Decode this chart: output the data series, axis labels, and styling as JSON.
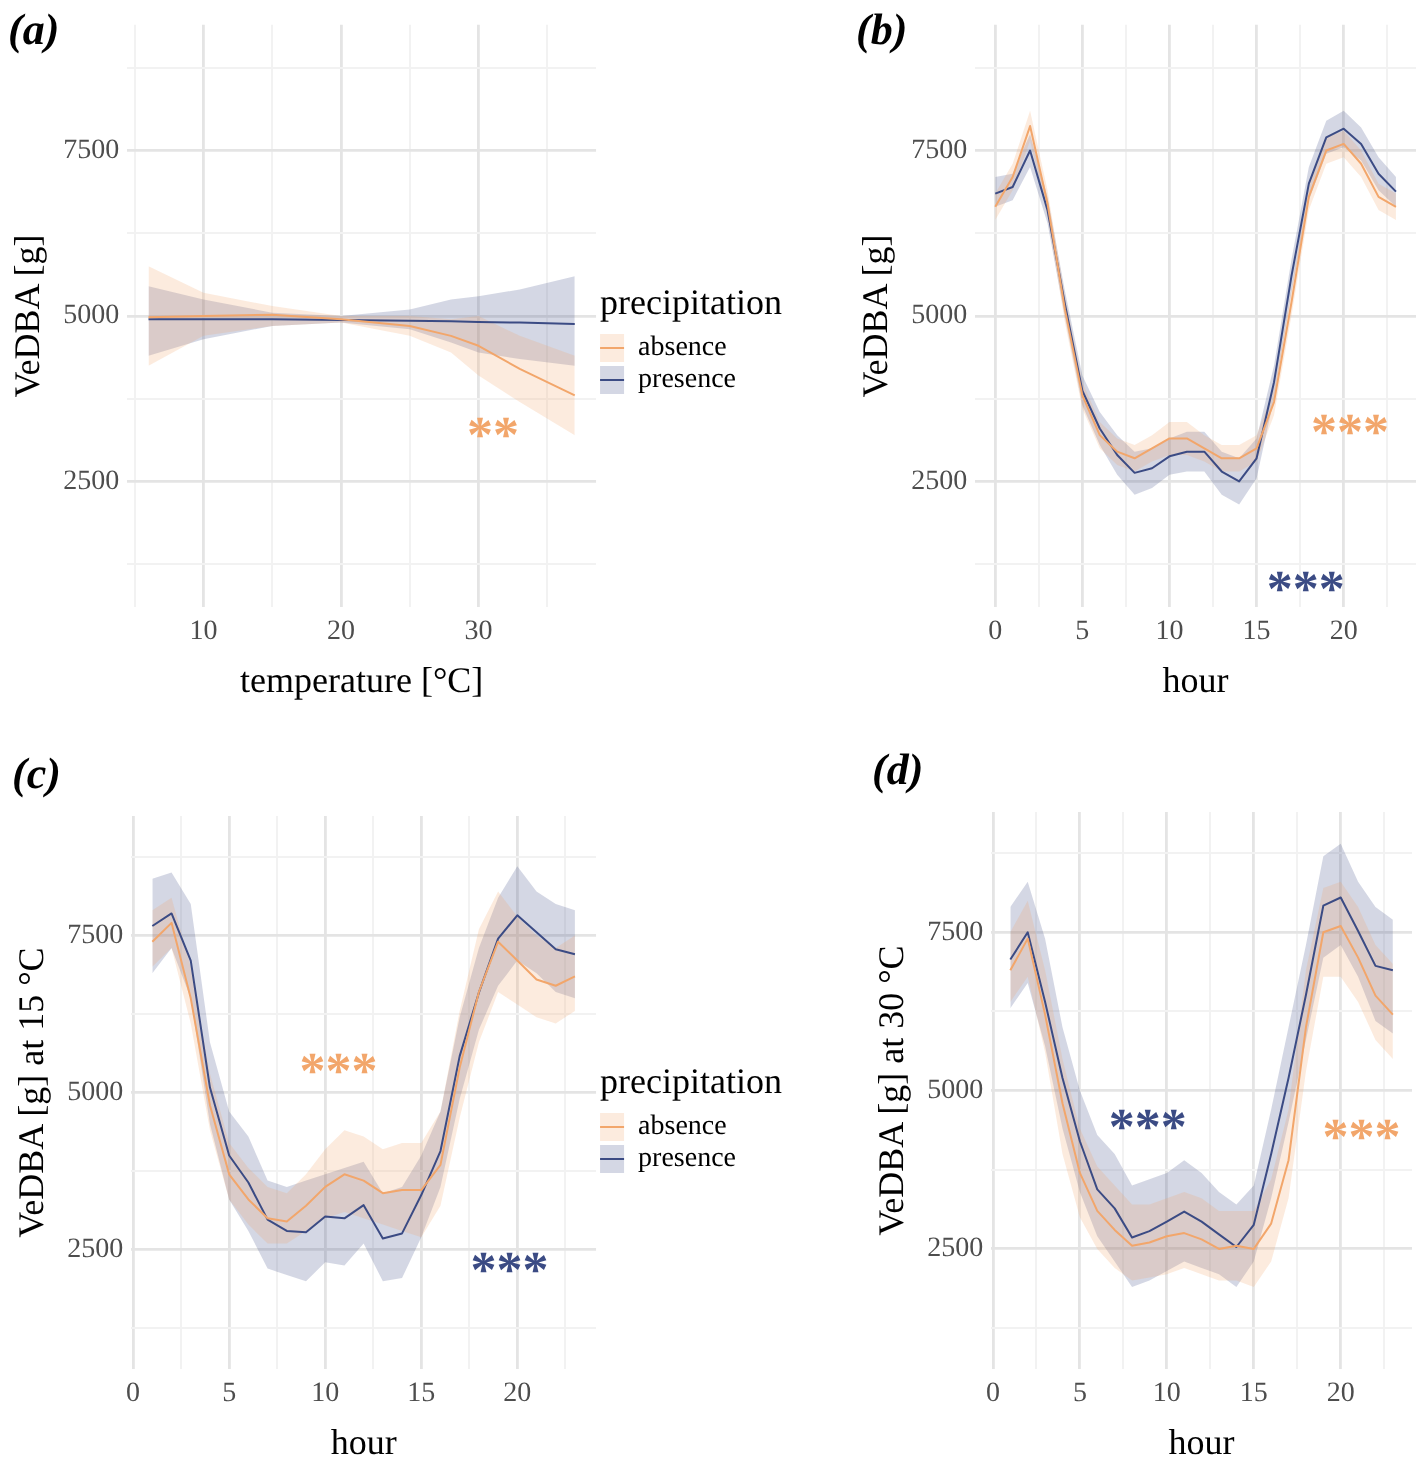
{
  "chart_data": [
    {
      "type": "line",
      "title": "(a)",
      "xlabel": "temperature [°C]",
      "ylabel": "VeDBA [g]",
      "legend_title": "precipitation",
      "legend": "right",
      "grid": true,
      "xlim": [
        4.45,
        38.55
      ],
      "xticks": [
        {
          "value": 5,
          "label": null
        },
        10,
        {
          "value": 15,
          "label": null
        },
        20,
        {
          "value": 25,
          "label": null
        },
        30,
        {
          "value": 35,
          "label": null
        }
      ],
      "ylim": [
        600,
        9400
      ],
      "yticks": [
        {
          "value": 1250,
          "label": null
        },
        2500,
        {
          "value": 3750,
          "label": null
        },
        5000,
        {
          "value": 6250,
          "label": null
        },
        7500,
        {
          "value": 8750,
          "label": null
        }
      ],
      "series": [
        {
          "name": "absence",
          "color": "#f2a66b",
          "x": [
            6,
            10,
            15,
            20,
            25,
            28,
            30,
            33,
            37
          ],
          "values": [
            4980,
            5000,
            5020,
            4950,
            4850,
            4700,
            4550,
            4200,
            3800
          ],
          "lower": [
            4250,
            4700,
            4850,
            4900,
            4700,
            4450,
            4100,
            3700,
            3200
          ],
          "upper": [
            5750,
            5350,
            5150,
            5000,
            5000,
            4950,
            5000,
            4700,
            4400
          ]
        },
        {
          "name": "presence",
          "color": "#3b4b84",
          "x": [
            6,
            10,
            15,
            20,
            25,
            28,
            30,
            33,
            37
          ],
          "values": [
            4950,
            4950,
            4950,
            4940,
            4930,
            4920,
            4910,
            4900,
            4880
          ],
          "lower": [
            4400,
            4650,
            4850,
            4900,
            4800,
            4600,
            4450,
            4350,
            4250
          ],
          "upper": [
            5450,
            5250,
            5050,
            5000,
            5100,
            5250,
            5300,
            5400,
            5600
          ]
        }
      ],
      "annotations": [
        "**"
      ]
    },
    {
      "type": "line",
      "title": "(b)",
      "xlabel": "hour",
      "ylabel": "VeDBA [g]",
      "grid": true,
      "xlim": [
        -1.15,
        24.15
      ],
      "xticks": [
        0,
        {
          "value": 2.5,
          "label": null
        },
        5,
        {
          "value": 7.5,
          "label": null
        },
        10,
        {
          "value": 12.5,
          "label": null
        },
        15,
        {
          "value": 17.5,
          "label": null
        },
        20,
        {
          "value": 22.5,
          "label": null
        }
      ],
      "ylim": [
        600,
        9400
      ],
      "yticks": [
        {
          "value": 1250,
          "label": null
        },
        2500,
        {
          "value": 3750,
          "label": null
        },
        5000,
        {
          "value": 6250,
          "label": null
        },
        7500,
        {
          "value": 8750,
          "label": null
        }
      ],
      "series": [
        {
          "color": "#f2a66b",
          "x": [
            0,
            1,
            2,
            3,
            4,
            5,
            6,
            7,
            8,
            9,
            10,
            11,
            12,
            13,
            14,
            15,
            16,
            17,
            18,
            19,
            20,
            21,
            22,
            23
          ],
          "values": [
            6650,
            7100,
            7870,
            6700,
            5100,
            3800,
            3200,
            2950,
            2850,
            3000,
            3150,
            3150,
            3000,
            2850,
            2850,
            3000,
            3700,
            5200,
            6800,
            7500,
            7600,
            7300,
            6800,
            6650
          ],
          "lower": [
            6450,
            6900,
            7650,
            6500,
            4900,
            3600,
            3000,
            2750,
            2650,
            2800,
            2900,
            2900,
            2800,
            2650,
            2650,
            2800,
            3500,
            5000,
            6600,
            7300,
            7400,
            7100,
            6600,
            6450
          ],
          "upper": [
            6850,
            7300,
            8100,
            6900,
            5300,
            4000,
            3400,
            3150,
            3050,
            3200,
            3400,
            3400,
            3200,
            3050,
            3050,
            3200,
            3900,
            5400,
            7000,
            7700,
            7800,
            7500,
            7000,
            6850
          ]
        },
        {
          "color": "#3b4b84",
          "x": [
            0,
            1,
            2,
            3,
            4,
            5,
            6,
            7,
            8,
            9,
            10,
            11,
            12,
            13,
            14,
            15,
            16,
            17,
            18,
            19,
            20,
            21,
            22,
            23
          ],
          "values": [
            6850,
            6950,
            7500,
            6600,
            5180,
            3870,
            3300,
            2900,
            2630,
            2700,
            2880,
            2950,
            2950,
            2650,
            2500,
            2850,
            4000,
            5600,
            7000,
            7700,
            7830,
            7600,
            7150,
            6880
          ],
          "lower": [
            6650,
            6750,
            7250,
            6400,
            4980,
            3650,
            3050,
            2600,
            2300,
            2400,
            2600,
            2650,
            2650,
            2300,
            2150,
            2550,
            3750,
            5350,
            6750,
            7450,
            7550,
            7350,
            6900,
            6650
          ],
          "upper": [
            7100,
            7150,
            7750,
            6800,
            5380,
            4100,
            3550,
            3200,
            2950,
            3000,
            3150,
            3250,
            3250,
            2950,
            2850,
            3150,
            4250,
            5850,
            7250,
            7950,
            8100,
            7850,
            7400,
            7100
          ]
        }
      ],
      "annotations": [
        "***",
        "***"
      ]
    },
    {
      "type": "line",
      "title": "(c)",
      "xlabel": "hour",
      "ylabel": "VeDBA [g] at 15 °C",
      "legend_title": "precipitation",
      "legend": "right",
      "grid": true,
      "xlim": [
        -0.1,
        24.1
      ],
      "xticks": [
        0,
        {
          "value": 2.5,
          "label": null
        },
        5,
        {
          "value": 7.5,
          "label": null
        },
        10,
        {
          "value": 12.5,
          "label": null
        },
        15,
        {
          "value": 17.5,
          "label": null
        },
        20,
        {
          "value": 22.5,
          "label": null
        }
      ],
      "ylim": [
        600,
        9400
      ],
      "yticks": [
        {
          "value": 1250,
          "label": null
        },
        2500,
        {
          "value": 3750,
          "label": null
        },
        5000,
        {
          "value": 6250,
          "label": null
        },
        7500,
        {
          "value": 8750,
          "label": null
        }
      ],
      "series": [
        {
          "name": "absence",
          "color": "#f2a66b",
          "x": [
            1,
            2,
            3,
            4,
            5,
            6,
            7,
            8,
            9,
            10,
            11,
            12,
            13,
            14,
            15,
            16,
            17,
            18,
            19,
            20,
            21,
            22,
            23
          ],
          "values": [
            7400,
            7700,
            6500,
            4800,
            3700,
            3300,
            3000,
            2950,
            3200,
            3500,
            3700,
            3600,
            3400,
            3450,
            3450,
            3850,
            5400,
            6600,
            7400,
            7100,
            6800,
            6700,
            6850
          ],
          "lower": [
            7000,
            7300,
            6100,
            4400,
            3300,
            2900,
            2600,
            2600,
            2800,
            3000,
            3100,
            3000,
            2900,
            2800,
            2700,
            3200,
            4600,
            5800,
            6600,
            6400,
            6200,
            6100,
            6300
          ],
          "upper": [
            7900,
            8100,
            7000,
            5300,
            4200,
            3800,
            3500,
            3400,
            3700,
            4100,
            4400,
            4300,
            4100,
            4200,
            4200,
            4700,
            6300,
            7600,
            8200,
            7800,
            7500,
            7300,
            7500
          ]
        },
        {
          "name": "presence",
          "color": "#3b4b84",
          "x": [
            1,
            2,
            3,
            4,
            5,
            6,
            7,
            8,
            9,
            10,
            11,
            12,
            13,
            14,
            15,
            16,
            17,
            18,
            19,
            20,
            21,
            22,
            23
          ],
          "values": [
            7650,
            7850,
            7100,
            5080,
            4000,
            3570,
            2980,
            2800,
            2780,
            3030,
            3000,
            3210,
            2680,
            2760,
            3370,
            4070,
            5580,
            6590,
            7450,
            7820,
            7550,
            7280,
            7200
          ],
          "lower": [
            6900,
            7300,
            6500,
            4500,
            3300,
            2800,
            2200,
            2100,
            2000,
            2300,
            2250,
            2600,
            2000,
            2050,
            2700,
            3500,
            4900,
            6000,
            6700,
            7100,
            6900,
            6600,
            6500
          ],
          "upper": [
            8400,
            8500,
            8000,
            5800,
            4700,
            4300,
            3600,
            3500,
            3600,
            3700,
            3800,
            3900,
            3400,
            3500,
            4000,
            4700,
            6200,
            7300,
            8100,
            8600,
            8200,
            8000,
            7900
          ]
        }
      ],
      "annotations": [
        "***",
        "***"
      ]
    },
    {
      "type": "line",
      "title": "(d)",
      "xlabel": "hour",
      "ylabel": "VeDBA [g] at 30 °C",
      "grid": true,
      "xlim": [
        -0.1,
        24.1
      ],
      "xticks": [
        0,
        {
          "value": 2.5,
          "label": null
        },
        5,
        {
          "value": 7.5,
          "label": null
        },
        10,
        {
          "value": 12.5,
          "label": null
        },
        15,
        {
          "value": 17.5,
          "label": null
        },
        20,
        {
          "value": 22.5,
          "label": null
        }
      ],
      "ylim": [
        600,
        9400
      ],
      "yticks": [
        {
          "value": 1250,
          "label": null
        },
        2500,
        {
          "value": 3750,
          "label": null
        },
        5000,
        {
          "value": 6250,
          "label": null
        },
        7500,
        {
          "value": 8750,
          "label": null
        }
      ],
      "series": [
        {
          "color": "#f2a66b",
          "x": [
            1,
            2,
            3,
            4,
            5,
            6,
            7,
            8,
            9,
            10,
            11,
            12,
            13,
            14,
            15,
            16,
            17,
            18,
            19,
            20,
            21,
            22,
            23
          ],
          "values": [
            6900,
            7400,
            6200,
            4800,
            3700,
            3100,
            2800,
            2550,
            2600,
            2700,
            2750,
            2650,
            2500,
            2550,
            2500,
            2900,
            3900,
            6000,
            7500,
            7600,
            7100,
            6500,
            6200
          ],
          "lower": [
            6400,
            6800,
            5600,
            4000,
            3000,
            2500,
            2200,
            2000,
            2050,
            2100,
            2200,
            2100,
            2000,
            2000,
            1900,
            2300,
            3300,
            5300,
            6800,
            6800,
            6400,
            5800,
            5500
          ],
          "upper": [
            7500,
            8000,
            6900,
            5500,
            4400,
            3800,
            3500,
            3200,
            3200,
            3300,
            3400,
            3300,
            3100,
            3100,
            3100,
            3600,
            4700,
            6900,
            8200,
            8300,
            7900,
            7300,
            7000
          ]
        },
        {
          "color": "#3b4b84",
          "x": [
            1,
            2,
            3,
            4,
            5,
            6,
            7,
            8,
            9,
            10,
            11,
            12,
            13,
            14,
            15,
            16,
            17,
            18,
            19,
            20,
            21,
            22,
            23
          ],
          "values": [
            7070,
            7500,
            6400,
            5200,
            4200,
            3440,
            3140,
            2680,
            2780,
            2930,
            3090,
            2930,
            2730,
            2530,
            2880,
            4000,
            5200,
            6510,
            7920,
            8050,
            7520,
            6970,
            6900
          ],
          "lower": [
            6300,
            6700,
            5700,
            4400,
            3400,
            2700,
            2300,
            1900,
            2000,
            2150,
            2300,
            2200,
            2100,
            1900,
            2300,
            3300,
            4500,
            5800,
            7100,
            7300,
            6800,
            6100,
            5900
          ],
          "upper": [
            7900,
            8300,
            7400,
            6000,
            5000,
            4300,
            4000,
            3500,
            3600,
            3700,
            3900,
            3700,
            3400,
            3200,
            3500,
            4700,
            6000,
            7300,
            8700,
            8900,
            8300,
            7900,
            7700
          ]
        }
      ],
      "annotations": [
        "***",
        "***"
      ]
    }
  ]
}
